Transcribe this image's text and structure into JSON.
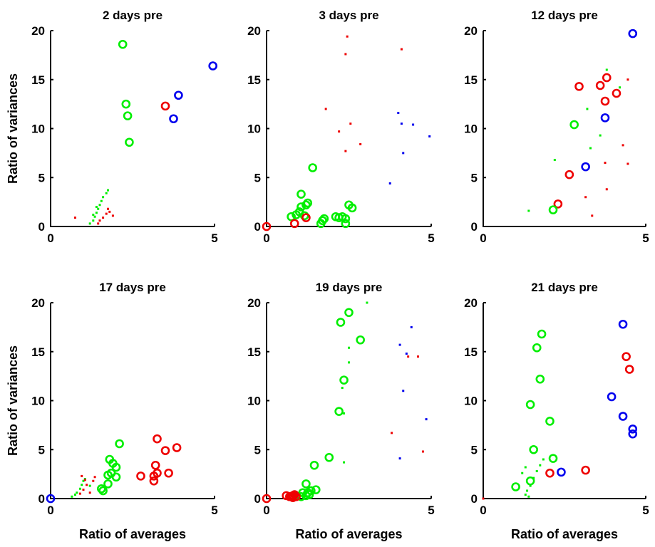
{
  "colors": {
    "green": "#00ee00",
    "red": "#ee0000",
    "blue": "#0000ee",
    "axis": "#000000"
  },
  "chart_data": [
    {
      "type": "scatter",
      "title": "2 days pre",
      "xlabel": "",
      "ylabel": "Ratio of variances",
      "xlim": [
        0,
        5
      ],
      "ylim": [
        0,
        20
      ],
      "xticks": [
        0,
        5
      ],
      "yticks": [
        0,
        5,
        10,
        15,
        20
      ],
      "grid": false,
      "series": [
        {
          "color": "green",
          "marker": "circle",
          "points": [
            [
              2.2,
              18.6
            ],
            [
              2.3,
              12.5
            ],
            [
              2.35,
              11.3
            ],
            [
              2.4,
              8.6
            ]
          ]
        },
        {
          "color": "red",
          "marker": "circle",
          "points": [
            [
              3.5,
              12.3
            ]
          ]
        },
        {
          "color": "blue",
          "marker": "circle",
          "points": [
            [
              3.9,
              13.4
            ],
            [
              3.75,
              11.0
            ],
            [
              4.95,
              16.4
            ]
          ]
        },
        {
          "color": "green",
          "marker": "dot",
          "points": [
            [
              1.2,
              0.3
            ],
            [
              1.3,
              0.6
            ],
            [
              1.35,
              1.0
            ],
            [
              1.4,
              1.4
            ],
            [
              1.45,
              1.8
            ],
            [
              1.5,
              2.2
            ],
            [
              1.55,
              2.6
            ],
            [
              1.6,
              3.0
            ],
            [
              1.7,
              3.4
            ],
            [
              1.75,
              3.7
            ],
            [
              1.3,
              1.2
            ],
            [
              1.4,
              2.0
            ]
          ]
        },
        {
          "color": "red",
          "marker": "dot",
          "points": [
            [
              0.75,
              0.9
            ],
            [
              1.5,
              0.6
            ],
            [
              1.6,
              0.9
            ],
            [
              1.7,
              1.3
            ],
            [
              1.75,
              1.8
            ],
            [
              1.8,
              1.5
            ],
            [
              1.9,
              1.1
            ],
            [
              1.45,
              0.3
            ]
          ]
        }
      ]
    },
    {
      "type": "scatter",
      "title": "3 days pre",
      "xlabel": "",
      "ylabel": "",
      "xlim": [
        0,
        5
      ],
      "ylim": [
        0,
        20
      ],
      "xticks": [
        0,
        5
      ],
      "yticks": [
        0,
        5,
        10,
        15,
        20
      ],
      "grid": false,
      "series": [
        {
          "color": "green",
          "marker": "circle",
          "points": [
            [
              1.4,
              6.0
            ],
            [
              1.05,
              3.3
            ],
            [
              0.75,
              1.0
            ],
            [
              0.9,
              1.2
            ],
            [
              1.0,
              1.5
            ],
            [
              1.05,
              2.0
            ],
            [
              1.15,
              1.1
            ],
            [
              1.2,
              2.2
            ],
            [
              1.25,
              2.4
            ],
            [
              1.7,
              0.6
            ],
            [
              1.75,
              0.8
            ],
            [
              1.65,
              0.3
            ],
            [
              2.1,
              1.0
            ],
            [
              2.2,
              0.9
            ],
            [
              2.3,
              1.0
            ],
            [
              2.4,
              0.8
            ],
            [
              2.4,
              0.3
            ],
            [
              2.5,
              2.2
            ],
            [
              2.6,
              1.9
            ]
          ]
        },
        {
          "color": "red",
          "marker": "circle",
          "points": [
            [
              0.0,
              0.0
            ],
            [
              0.85,
              0.3
            ],
            [
              1.2,
              0.9
            ]
          ]
        },
        {
          "color": "red",
          "marker": "dot",
          "points": [
            [
              2.45,
              19.4
            ],
            [
              2.4,
              17.6
            ],
            [
              4.1,
              18.1
            ],
            [
              1.8,
              12.0
            ],
            [
              2.2,
              9.7
            ],
            [
              2.55,
              10.5
            ],
            [
              2.85,
              8.4
            ],
            [
              2.4,
              7.7
            ]
          ]
        },
        {
          "color": "blue",
          "marker": "dot",
          "points": [
            [
              4.0,
              11.6
            ],
            [
              4.1,
              10.5
            ],
            [
              4.45,
              10.4
            ],
            [
              4.15,
              7.5
            ],
            [
              4.95,
              9.2
            ],
            [
              3.75,
              4.4
            ]
          ]
        }
      ]
    },
    {
      "type": "scatter",
      "title": "12 days pre",
      "xlabel": "",
      "ylabel": "",
      "xlim": [
        0,
        5
      ],
      "ylim": [
        0,
        20
      ],
      "xticks": [
        0,
        5
      ],
      "yticks": [
        0,
        5,
        10,
        15,
        20
      ],
      "grid": false,
      "series": [
        {
          "color": "blue",
          "marker": "circle",
          "points": [
            [
              4.6,
              19.7
            ],
            [
              3.75,
              11.1
            ],
            [
              3.15,
              6.1
            ]
          ]
        },
        {
          "color": "red",
          "marker": "circle",
          "points": [
            [
              3.8,
              15.2
            ],
            [
              3.6,
              14.4
            ],
            [
              4.1,
              13.6
            ],
            [
              3.75,
              12.8
            ],
            [
              2.95,
              14.3
            ],
            [
              2.65,
              5.3
            ],
            [
              2.3,
              2.3
            ]
          ]
        },
        {
          "color": "green",
          "marker": "circle",
          "points": [
            [
              2.8,
              10.4
            ],
            [
              2.15,
              1.7
            ]
          ]
        },
        {
          "color": "green",
          "marker": "dot",
          "points": [
            [
              3.8,
              16.0
            ],
            [
              3.2,
              12.0
            ],
            [
              3.6,
              9.3
            ],
            [
              3.3,
              8.0
            ],
            [
              2.2,
              6.8
            ],
            [
              1.4,
              1.6
            ],
            [
              4.2,
              14.2
            ]
          ]
        },
        {
          "color": "red",
          "marker": "dot",
          "points": [
            [
              4.45,
              15.0
            ],
            [
              4.3,
              8.3
            ],
            [
              4.45,
              6.4
            ],
            [
              3.75,
              6.5
            ],
            [
              3.15,
              3.0
            ],
            [
              3.8,
              3.8
            ],
            [
              3.35,
              1.1
            ]
          ]
        }
      ]
    },
    {
      "type": "scatter",
      "title": "17 days pre",
      "xlabel": "Ratio of averages",
      "ylabel": "Ratio of variances",
      "xlim": [
        0,
        5
      ],
      "ylim": [
        0,
        20
      ],
      "xticks": [
        0,
        5
      ],
      "yticks": [
        0,
        5,
        10,
        15,
        20
      ],
      "grid": false,
      "series": [
        {
          "color": "green",
          "marker": "circle",
          "points": [
            [
              2.1,
              5.6
            ],
            [
              1.8,
              4.0
            ],
            [
              1.9,
              3.6
            ],
            [
              2.0,
              3.2
            ],
            [
              1.75,
              2.4
            ],
            [
              1.85,
              2.6
            ],
            [
              1.55,
              1.0
            ],
            [
              1.6,
              0.8
            ],
            [
              2.0,
              2.2
            ],
            [
              1.75,
              1.5
            ]
          ]
        },
        {
          "color": "red",
          "marker": "circle",
          "points": [
            [
              3.25,
              6.1
            ],
            [
              3.85,
              5.2
            ],
            [
              3.5,
              4.9
            ],
            [
              3.2,
              3.4
            ],
            [
              3.25,
              2.6
            ],
            [
              3.15,
              2.3
            ],
            [
              3.15,
              1.8
            ],
            [
              2.75,
              2.3
            ],
            [
              3.6,
              2.6
            ]
          ]
        },
        {
          "color": "blue",
          "marker": "circle",
          "points": [
            [
              0.0,
              0.0
            ]
          ]
        },
        {
          "color": "green",
          "marker": "dot",
          "points": [
            [
              0.65,
              0.2
            ],
            [
              0.8,
              0.6
            ],
            [
              0.9,
              1.0
            ],
            [
              0.95,
              1.4
            ],
            [
              1.0,
              1.8
            ],
            [
              1.05,
              2.0
            ],
            [
              1.2,
              1.3
            ],
            [
              0.75,
              0.4
            ]
          ]
        },
        {
          "color": "red",
          "marker": "dot",
          "points": [
            [
              0.95,
              2.3
            ],
            [
              1.05,
              1.9
            ],
            [
              1.1,
              1.4
            ],
            [
              1.0,
              0.9
            ],
            [
              1.2,
              0.6
            ],
            [
              1.3,
              1.8
            ],
            [
              1.35,
              2.2
            ],
            [
              0.9,
              0.5
            ]
          ]
        }
      ]
    },
    {
      "type": "scatter",
      "title": "19 days pre",
      "xlabel": "Ratio of averages",
      "ylabel": "",
      "xlim": [
        0,
        5
      ],
      "ylim": [
        0,
        20
      ],
      "xticks": [
        0,
        5
      ],
      "yticks": [
        0,
        5,
        10,
        15,
        20
      ],
      "grid": false,
      "series": [
        {
          "color": "green",
          "marker": "circle",
          "points": [
            [
              2.5,
              19.0
            ],
            [
              2.25,
              18.0
            ],
            [
              2.85,
              16.2
            ],
            [
              2.35,
              12.1
            ],
            [
              2.2,
              8.9
            ],
            [
              1.9,
              4.2
            ],
            [
              1.45,
              3.4
            ],
            [
              1.2,
              1.5
            ],
            [
              1.5,
              0.9
            ],
            [
              1.35,
              0.8
            ],
            [
              1.1,
              0.6
            ],
            [
              1.2,
              0.3
            ],
            [
              1.05,
              0.2
            ],
            [
              1.3,
              0.4
            ],
            [
              1.25,
              0.6
            ]
          ]
        },
        {
          "color": "red",
          "marker": "circle",
          "points": [
            [
              0.0,
              0.0
            ],
            [
              0.6,
              0.3
            ],
            [
              0.75,
              0.2
            ],
            [
              0.8,
              0.3
            ],
            [
              0.85,
              0.4
            ],
            [
              0.9,
              0.2
            ],
            [
              0.8,
              0.1
            ],
            [
              0.7,
              0.2
            ]
          ]
        },
        {
          "color": "green",
          "marker": "dot",
          "points": [
            [
              3.05,
              20.0
            ],
            [
              2.5,
              15.4
            ],
            [
              2.5,
              13.9
            ],
            [
              2.3,
              11.3
            ],
            [
              2.35,
              8.7
            ],
            [
              2.35,
              3.7
            ]
          ]
        },
        {
          "color": "blue",
          "marker": "dot",
          "points": [
            [
              4.4,
              17.5
            ],
            [
              4.05,
              15.7
            ],
            [
              4.25,
              14.8
            ],
            [
              4.15,
              11.0
            ],
            [
              4.85,
              8.1
            ],
            [
              4.05,
              4.1
            ]
          ]
        },
        {
          "color": "red",
          "marker": "dot",
          "points": [
            [
              4.3,
              14.5
            ],
            [
              4.6,
              14.5
            ],
            [
              3.8,
              6.7
            ],
            [
              4.75,
              4.8
            ]
          ]
        }
      ]
    },
    {
      "type": "scatter",
      "title": "21 days pre",
      "xlabel": "Ratio of averages",
      "ylabel": "",
      "xlim": [
        0,
        5
      ],
      "ylim": [
        0,
        20
      ],
      "xticks": [
        0,
        5
      ],
      "yticks": [
        0,
        5,
        10,
        15,
        20
      ],
      "grid": false,
      "series": [
        {
          "color": "green",
          "marker": "circle",
          "points": [
            [
              1.8,
              16.8
            ],
            [
              1.65,
              15.4
            ],
            [
              1.75,
              12.2
            ],
            [
              1.45,
              9.6
            ],
            [
              2.05,
              7.9
            ],
            [
              1.55,
              5.0
            ],
            [
              2.15,
              4.1
            ],
            [
              1.45,
              1.8
            ],
            [
              1.0,
              1.2
            ]
          ]
        },
        {
          "color": "blue",
          "marker": "circle",
          "points": [
            [
              4.3,
              17.8
            ],
            [
              3.95,
              10.4
            ],
            [
              4.3,
              8.4
            ],
            [
              4.6,
              7.1
            ],
            [
              4.6,
              6.6
            ],
            [
              2.4,
              2.7
            ]
          ]
        },
        {
          "color": "red",
          "marker": "circle",
          "points": [
            [
              4.4,
              14.5
            ],
            [
              4.5,
              13.2
            ],
            [
              2.05,
              2.6
            ],
            [
              3.15,
              2.9
            ]
          ]
        },
        {
          "color": "green",
          "marker": "dot",
          "points": [
            [
              1.3,
              0.4
            ],
            [
              1.35,
              0.8
            ],
            [
              1.45,
              1.3
            ],
            [
              1.55,
              2.1
            ],
            [
              1.65,
              2.8
            ],
            [
              1.75,
              3.4
            ],
            [
              1.85,
              4.0
            ],
            [
              1.3,
              3.2
            ],
            [
              1.2,
              2.6
            ],
            [
              1.4,
              0.2
            ]
          ]
        },
        {
          "color": "red",
          "marker": "dot",
          "points": [
            [
              0.0,
              0.0
            ]
          ]
        }
      ]
    }
  ]
}
